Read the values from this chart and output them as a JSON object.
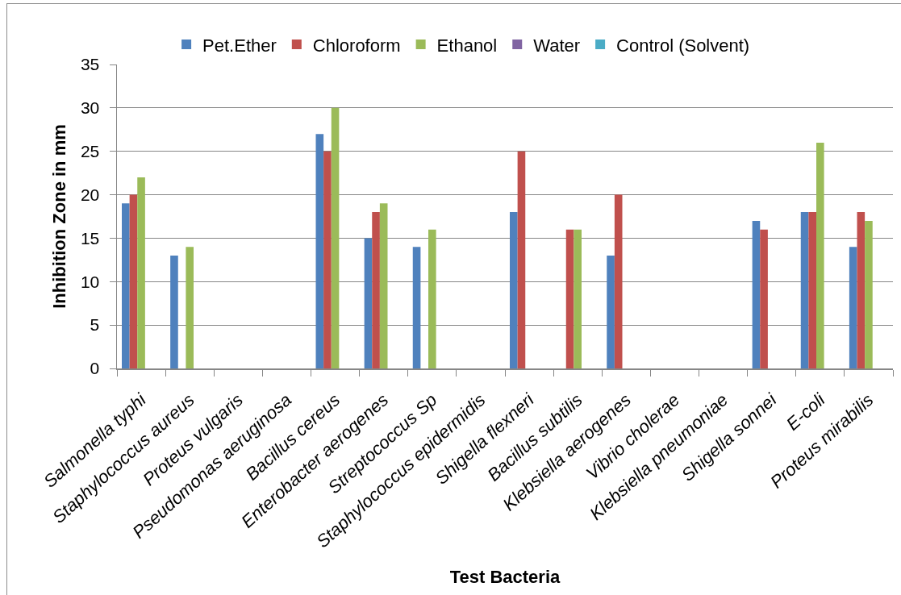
{
  "chart_data": {
    "type": "bar",
    "xlabel": "Test Bacteria",
    "ylabel": "Inhibition Zone in mm",
    "categories": [
      "Salmonella typhi",
      "Staphylococcus aureus",
      "Proteus vulgaris",
      "Pseudomonas aeruginosa",
      "Bacillus cereus",
      "Enterobacter aerogenes",
      "Streptococcus Sp",
      "Staphylococcus epidermidis",
      "Shigella flexneri",
      "Bacillus subtilis",
      "Klebsiella aerogenes",
      "Vibrio cholerae",
      "Klebsiella pneumoniae",
      "Shigella sonnei",
      "E-coli",
      "Proteus mirabilis"
    ],
    "series": [
      {
        "name": "Pet.Ether",
        "color": "#4f81bd",
        "values": [
          19,
          13,
          null,
          null,
          27,
          15,
          14,
          null,
          18,
          null,
          13,
          null,
          null,
          17,
          18,
          14
        ]
      },
      {
        "name": "Chloroform",
        "color": "#c0504d",
        "values": [
          20,
          null,
          null,
          null,
          25,
          18,
          null,
          null,
          25,
          16,
          20,
          null,
          null,
          16,
          18,
          18
        ]
      },
      {
        "name": "Ethanol",
        "color": "#9bbb59",
        "values": [
          22,
          14,
          null,
          null,
          30,
          19,
          16,
          null,
          null,
          16,
          null,
          null,
          null,
          null,
          26,
          17
        ]
      },
      {
        "name": "Water",
        "color": "#8064a2",
        "values": [
          null,
          null,
          null,
          null,
          null,
          null,
          null,
          null,
          null,
          null,
          null,
          null,
          null,
          null,
          null,
          null
        ]
      },
      {
        "name": "Control (Solvent)",
        "color": "#4bacc6",
        "values": [
          null,
          null,
          null,
          null,
          null,
          null,
          null,
          null,
          null,
          null,
          null,
          null,
          null,
          null,
          null,
          null
        ]
      }
    ],
    "ylim": [
      0,
      35
    ],
    "yticks": [
      0,
      5,
      10,
      15,
      20,
      25,
      30,
      35
    ],
    "grid": "y",
    "legend": "top"
  }
}
